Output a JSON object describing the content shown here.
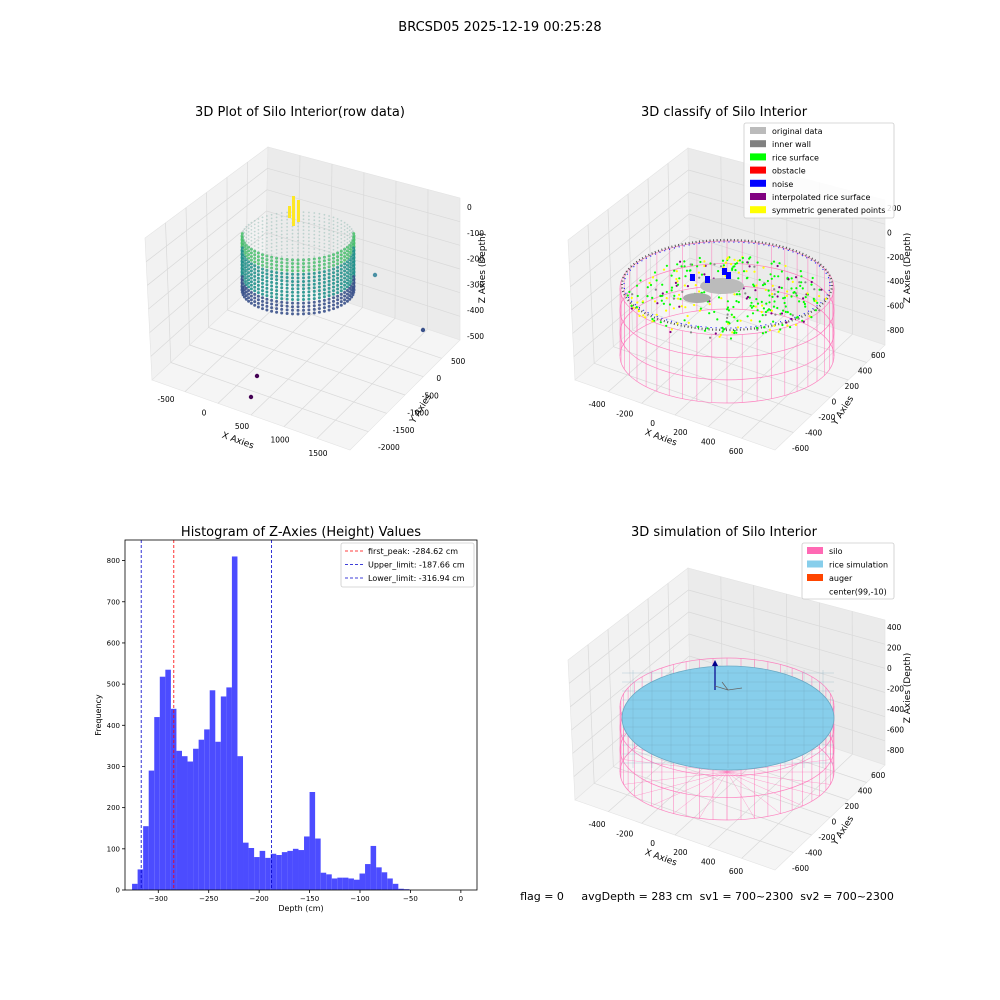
{
  "figure": {
    "suptitle": "BRCSD05 2025-12-19 00:25:28",
    "status": "flag = 0     avgDepth = 283 cm  sv1 = 700~2300  sv2 = 700~2300"
  },
  "colors": {
    "hist_bar": "#4c4cff",
    "first_peak_line": "#ff0000",
    "limit_line": "#0000cc",
    "silo_mesh": "#ff69b4",
    "rice_simulation": "#87ceeb",
    "auger": "#ff4500",
    "original_data": "#bbbbbb",
    "inner_wall": "#808080",
    "rice_surface": "#00ff00",
    "obstacle": "#ff0000",
    "noise": "#0000ff",
    "interpolated_rice_surface": "#800080",
    "symmetric_points": "#ffff00"
  },
  "chart_data": [
    {
      "type": "scatter",
      "projection": "3d",
      "title": "3D Plot of Silo Interior(row data)",
      "xlabel": "X Axies",
      "ylabel": "Y Axies",
      "zlabel": "Z Axies (Depth)",
      "xticks": [
        "-500",
        "0",
        "500",
        "1000",
        "1500"
      ],
      "yticks": [
        "500",
        "0",
        "-500",
        "-1000",
        "-1500",
        "-2000"
      ],
      "zticks": [
        "0",
        "-100",
        "-200",
        "-300",
        "-400",
        "-500"
      ],
      "colormap": "viridis",
      "grid": true
    },
    {
      "type": "scatter",
      "projection": "3d",
      "title": "3D classify of Silo Interior",
      "xlabel": "X Axies",
      "ylabel": "Y Axies",
      "zlabel": "Z Axies (Depth)",
      "xticks": [
        "-400",
        "-200",
        "0",
        "200",
        "400",
        "600"
      ],
      "yticks": [
        "600",
        "400",
        "200",
        "0",
        "-200",
        "-400",
        "-600"
      ],
      "zticks": [
        "200",
        "0",
        "-200",
        "-400",
        "-600",
        "-800"
      ],
      "legend": [
        "original data",
        "inner wall",
        "rice surface",
        "obstacle",
        "noise",
        "interpolated rice surface",
        "symmetric generated points"
      ],
      "legend_loc": "top-right",
      "grid": true
    },
    {
      "type": "bar",
      "title": "Histogram of Z-Axies (Height) Values",
      "xlabel": "Depth (cm)",
      "ylabel": "Frequency",
      "xlim": [
        -333,
        16
      ],
      "ylim": [
        0,
        850
      ],
      "xticks": [
        "−300",
        "−250",
        "−200",
        "−150",
        "−100",
        "−50",
        "0"
      ],
      "yticks": [
        "0",
        "100",
        "200",
        "300",
        "400",
        "500",
        "600",
        "700",
        "800"
      ],
      "bin_width": 5.5,
      "bin_start": -326,
      "values": [
        15,
        50,
        155,
        290,
        420,
        518,
        535,
        440,
        338,
        325,
        312,
        343,
        365,
        390,
        485,
        360,
        470,
        492,
        810,
        325,
        115,
        102,
        80,
        95,
        78,
        88,
        85,
        92,
        95,
        100,
        97,
        130,
        238,
        125,
        42,
        38,
        28,
        30,
        30,
        28,
        25,
        40,
        63,
        107,
        55,
        43,
        28,
        15,
        3,
        2
      ],
      "vlines": [
        {
          "label": "first_peak: -284.62 cm",
          "x": -284.62,
          "style": "red"
        },
        {
          "label": "Upper_limit: -187.66 cm",
          "x": -187.66,
          "style": "blue"
        },
        {
          "label": "Lower_limit: -316.94 cm",
          "x": -316.94,
          "style": "blue"
        }
      ],
      "legend_loc": "top-right"
    },
    {
      "type": "surface",
      "projection": "3d",
      "title": "3D simulation of Silo Interior",
      "xlabel": "X Axies",
      "ylabel": "Y Axies",
      "zlabel": "Z Axies (Depth)",
      "xticks": [
        "-400",
        "-200",
        "0",
        "200",
        "400",
        "600"
      ],
      "yticks": [
        "600",
        "400",
        "200",
        "0",
        "-200",
        "-400",
        "-600"
      ],
      "zticks": [
        "400",
        "200",
        "0",
        "-200",
        "-400",
        "-600",
        "-800"
      ],
      "legend": [
        "silo",
        "rice simulation",
        "auger",
        "center(99,-10)"
      ],
      "legend_loc": "top-right",
      "grid": true
    }
  ]
}
